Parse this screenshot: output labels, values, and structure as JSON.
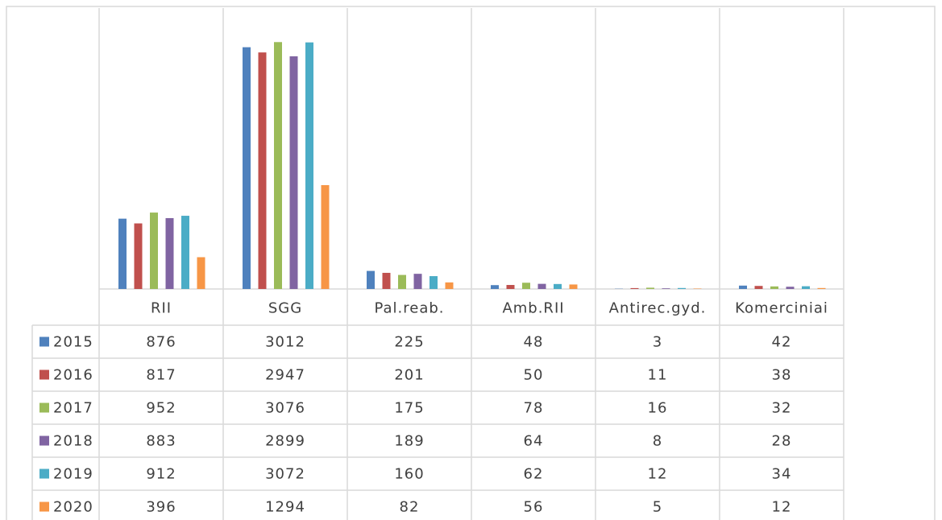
{
  "chart_data": {
    "type": "bar",
    "categories": [
      "RII",
      "SGG",
      "Pal.reab.",
      "Amb.RII",
      "Antirec.gyd.",
      "Komerciniai"
    ],
    "series": [
      {
        "name": "2015",
        "color": "#4f81bd",
        "values": [
          876,
          3012,
          225,
          48,
          3,
          42
        ]
      },
      {
        "name": "2016",
        "color": "#c0504d",
        "values": [
          817,
          2947,
          201,
          50,
          11,
          38
        ]
      },
      {
        "name": "2017",
        "color": "#9bbb59",
        "values": [
          952,
          3076,
          175,
          78,
          16,
          32
        ]
      },
      {
        "name": "2018",
        "color": "#8064a2",
        "values": [
          883,
          2899,
          189,
          64,
          8,
          28
        ]
      },
      {
        "name": "2019",
        "color": "#4bacc6",
        "values": [
          912,
          3072,
          160,
          62,
          12,
          34
        ]
      },
      {
        "name": "2020",
        "color": "#f79646",
        "values": [
          396,
          1294,
          82,
          56,
          5,
          12
        ]
      }
    ],
    "ylim": [
      0,
      3500
    ]
  }
}
